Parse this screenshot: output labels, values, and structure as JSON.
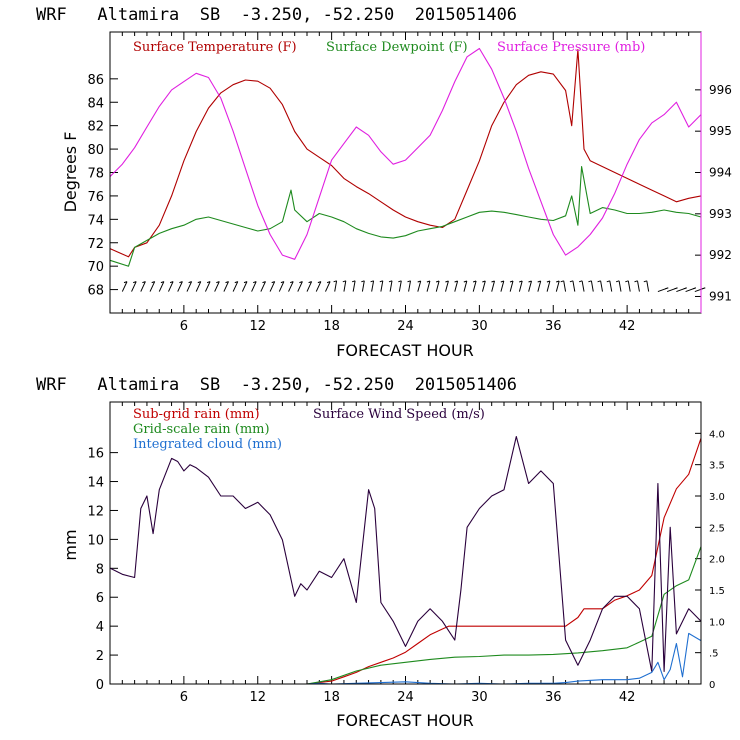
{
  "colors": {
    "temp": "#b00000",
    "dew": "#1e8a1e",
    "pres": "#e020e0",
    "subrain": "#c00000",
    "gridrain": "#1e8a1e",
    "wind": "#2a003c",
    "cloud": "#1f6fd0"
  },
  "chart_data": [
    {
      "type": "line",
      "title": "WRF   Altamira  SB  -3.250, -52.250  2015051406",
      "xlabel": "FORECAST HOUR",
      "ylabel": "Degrees F",
      "xlim": [
        0,
        48
      ],
      "ylim": [
        66,
        90
      ],
      "y2lim": [
        990.6,
        997.4
      ],
      "xticks": [
        "6",
        "12",
        "18",
        "24",
        "30",
        "36",
        "42"
      ],
      "yticks": [
        "68",
        "70",
        "72",
        "74",
        "76",
        "78",
        "80",
        "82",
        "84",
        "86"
      ],
      "y2ticks": [
        "991",
        "992",
        "993",
        "994",
        "995",
        "996"
      ],
      "legend": [
        "Surface Temperature (F)",
        "Surface Dewpoint (F)",
        "Surface Pressure (mb)"
      ],
      "series": [
        {
          "name": "Surface Temperature (F)",
          "axis": "left",
          "x": [
            0,
            1.5,
            2,
            3,
            4,
            5,
            6,
            7,
            8,
            9,
            10,
            11,
            12,
            13,
            14,
            15,
            16,
            17,
            18,
            19,
            20,
            21,
            22,
            23,
            24,
            25,
            26,
            27,
            28,
            29,
            30,
            31,
            32,
            33,
            34,
            35,
            36,
            37,
            37.5,
            38,
            38.5,
            39,
            40,
            41,
            42,
            43,
            44,
            45,
            46,
            47,
            48
          ],
          "values": [
            71.5,
            70.8,
            71.6,
            72,
            73.5,
            76,
            79,
            81.5,
            83.5,
            84.8,
            85.5,
            85.9,
            85.8,
            85.2,
            83.8,
            81.5,
            80,
            79.3,
            78.6,
            77.5,
            76.8,
            76.2,
            75.5,
            74.8,
            74.2,
            73.8,
            73.5,
            73.3,
            74,
            76.5,
            79,
            82,
            84,
            85.5,
            86.3,
            86.6,
            86.4,
            85,
            82,
            88.5,
            80,
            79,
            78.5,
            78,
            77.5,
            77,
            76.5,
            76,
            75.5,
            75.8,
            76
          ]
        },
        {
          "name": "Surface Dewpoint (F)",
          "axis": "left",
          "x": [
            0,
            1.5,
            2,
            3,
            4,
            5,
            6,
            7,
            8,
            9,
            10,
            11,
            12,
            13,
            14,
            14.7,
            15,
            16,
            17,
            18,
            19,
            20,
            21,
            22,
            23,
            24,
            25,
            26,
            27,
            28,
            29,
            30,
            31,
            32,
            33,
            34,
            35,
            36,
            37,
            37.5,
            38,
            38.3,
            39,
            40,
            41,
            42,
            43,
            44,
            45,
            46,
            47,
            48
          ],
          "values": [
            70.5,
            70,
            71.6,
            72.2,
            72.8,
            73.2,
            73.5,
            74,
            74.2,
            73.9,
            73.6,
            73.3,
            73,
            73.2,
            73.8,
            76.5,
            74.8,
            73.8,
            74.5,
            74.2,
            73.8,
            73.2,
            72.8,
            72.5,
            72.4,
            72.6,
            73,
            73.2,
            73.4,
            73.8,
            74.2,
            74.6,
            74.7,
            74.6,
            74.4,
            74.2,
            74,
            73.9,
            74.3,
            76,
            73.5,
            78.5,
            74.5,
            75,
            74.8,
            74.5,
            74.5,
            74.6,
            74.8,
            74.6,
            74.5,
            74.2
          ]
        },
        {
          "name": "Surface Pressure (mb)",
          "axis": "right",
          "x": [
            0,
            1,
            2,
            3,
            4,
            5,
            6,
            7,
            8,
            9,
            10,
            11,
            12,
            13,
            14,
            15,
            16,
            17,
            18,
            19,
            20,
            21,
            22,
            23,
            24,
            25,
            26,
            27,
            28,
            29,
            30,
            31,
            32,
            33,
            34,
            35,
            36,
            37,
            38,
            39,
            40,
            41,
            42,
            43,
            44,
            45,
            46,
            47,
            48
          ],
          "values": [
            993.9,
            994.2,
            994.6,
            995.1,
            995.6,
            996.0,
            996.2,
            996.4,
            996.3,
            995.8,
            995.0,
            994.1,
            993.2,
            992.5,
            992.0,
            991.9,
            992.5,
            993.4,
            994.3,
            994.7,
            995.1,
            994.9,
            994.5,
            994.2,
            994.3,
            994.6,
            994.9,
            995.5,
            996.2,
            996.8,
            997.0,
            996.5,
            995.8,
            995.0,
            994.1,
            993.3,
            992.5,
            992.0,
            992.2,
            992.5,
            992.9,
            993.5,
            994.2,
            994.8,
            995.2,
            995.4,
            995.7,
            995.1,
            995.4
          ]
        }
      ],
      "wind_barbs": "row of wind barbs along y=68 across all forecast hours"
    },
    {
      "type": "line",
      "title": "WRF   Altamira  SB  -3.250, -52.250  2015051406",
      "xlabel": "FORECAST HOUR",
      "ylabel": "mm",
      "xlim": [
        0,
        48
      ],
      "ylim": [
        0,
        19.5
      ],
      "y2lim": [
        0,
        4.5
      ],
      "xticks": [
        "6",
        "12",
        "18",
        "24",
        "30",
        "36",
        "42"
      ],
      "yticks": [
        "0",
        "2",
        "4",
        "6",
        "8",
        "10",
        "12",
        "14",
        "16"
      ],
      "y2ticks": [
        "0",
        ".5",
        "1.0",
        "1.5",
        "2.0",
        "2.5",
        "3.0",
        "3.5",
        "4.0"
      ],
      "legend": [
        "Sub-grid rain (mm)",
        "Surface Wind Speed (m/s)",
        "Grid-scale rain (mm)",
        "Integrated cloud (mm)"
      ],
      "series": [
        {
          "name": "Sub-grid rain (mm)",
          "axis": "left",
          "x": [
            0,
            16,
            18,
            19,
            20,
            21,
            22,
            23,
            24,
            25,
            26,
            27,
            27.5,
            28,
            33,
            37,
            38,
            38.5,
            39,
            40,
            41,
            42,
            43,
            44,
            45,
            46,
            47,
            48
          ],
          "values": [
            0,
            0,
            0.2,
            0.5,
            0.8,
            1.2,
            1.5,
            1.8,
            2.2,
            2.8,
            3.4,
            3.8,
            4.0,
            4.0,
            4.0,
            4.0,
            4.6,
            5.2,
            5.2,
            5.2,
            5.8,
            6.1,
            6.5,
            7.5,
            11.5,
            13.5,
            14.5,
            17
          ]
        },
        {
          "name": "Grid-scale rain (mm)",
          "axis": "left",
          "x": [
            0,
            16,
            18,
            20,
            22,
            24,
            26,
            28,
            30,
            32,
            34,
            36,
            38,
            40,
            42,
            43,
            44,
            45,
            46,
            47,
            48
          ],
          "values": [
            0,
            0,
            0.3,
            0.9,
            1.3,
            1.5,
            1.7,
            1.85,
            1.9,
            2.0,
            2.0,
            2.05,
            2.15,
            2.3,
            2.5,
            2.9,
            3.3,
            6.2,
            6.8,
            7.2,
            9.5
          ]
        },
        {
          "name": "Surface Wind Speed (m/s)",
          "axis": "right",
          "x": [
            0,
            1,
            2,
            2.5,
            3,
            3.5,
            4,
            5,
            5.5,
            6,
            6.5,
            7,
            8,
            9,
            10,
            11,
            12,
            13,
            14,
            15,
            15.5,
            16,
            17,
            18,
            19,
            20,
            21,
            21.5,
            22,
            23,
            24,
            25,
            26,
            27,
            28,
            28.5,
            29,
            30,
            31,
            32,
            33,
            34,
            35,
            36,
            37,
            38,
            39,
            40,
            41,
            42,
            43,
            44,
            44.5,
            45,
            45.5,
            46,
            47,
            48
          ],
          "values": [
            1.85,
            1.75,
            1.7,
            2.8,
            3.0,
            2.4,
            3.1,
            3.6,
            3.55,
            3.4,
            3.5,
            3.45,
            3.3,
            3.0,
            3.0,
            2.8,
            2.9,
            2.7,
            2.3,
            1.4,
            1.6,
            1.5,
            1.8,
            1.7,
            2.0,
            1.3,
            3.1,
            2.8,
            1.3,
            1.0,
            0.6,
            1.0,
            1.2,
            1.0,
            0.7,
            1.5,
            2.5,
            2.8,
            3.0,
            3.1,
            3.95,
            3.2,
            3.4,
            3.2,
            0.7,
            0.3,
            0.7,
            1.2,
            1.4,
            1.4,
            1.2,
            0.2,
            3.2,
            0.2,
            2.5,
            0.8,
            1.2,
            1.0
          ]
        },
        {
          "name": "Integrated cloud (mm)",
          "axis": "left",
          "x": [
            0,
            16,
            17,
            18,
            20,
            22,
            24,
            26,
            28,
            30,
            32,
            34,
            36,
            37,
            38,
            40,
            42,
            43,
            44,
            44.5,
            45,
            45.5,
            46,
            46.5,
            47,
            48
          ],
          "values": [
            0,
            0,
            0.05,
            0,
            0.05,
            0.1,
            0.15,
            0.05,
            0,
            0.05,
            0,
            0.05,
            0.05,
            0.1,
            0.2,
            0.3,
            0.3,
            0.4,
            0.8,
            1.5,
            0.3,
            1.0,
            2.8,
            0.5,
            3.5,
            3.0
          ]
        }
      ]
    }
  ]
}
